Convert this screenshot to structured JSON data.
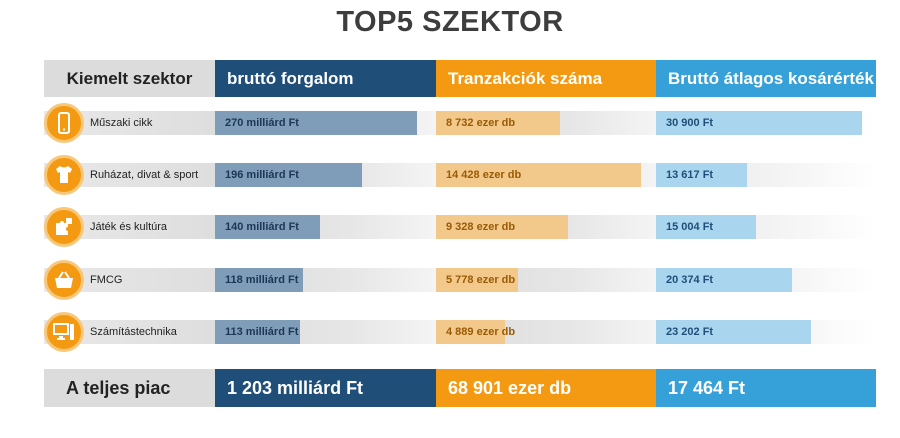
{
  "title": "TOP5 SZEKTOR",
  "headers": {
    "sector": "Kiemelt szektor",
    "revenue": "bruttó forgalom",
    "transactions": "Tranzakciók száma",
    "basket": "Bruttó átlagos kosárérték"
  },
  "colors": {
    "revenue": "#1f4e79",
    "transactions": "#f39a12",
    "basket": "#36a0d8"
  },
  "chart_data": {
    "type": "bar",
    "title": "TOP5 SZEKTOR",
    "categories": [
      "Műszaki cikk",
      "Ruházat, divat & sport",
      "Játék és kultúra",
      "FMCG",
      "Számítástechnika"
    ],
    "icons": [
      "smartphone-icon",
      "tshirt-icon",
      "puzzle-icon",
      "basket-icon",
      "computer-icon"
    ],
    "series": [
      {
        "name": "bruttó forgalom",
        "unit": "milliárd Ft",
        "values": [
          270,
          196,
          140,
          118,
          113
        ],
        "labels": [
          "270 milliárd Ft",
          "196 milliárd Ft",
          "140 milliárd Ft",
          "118 milliárd Ft",
          "113 milliárd Ft"
        ],
        "scale_max": 295
      },
      {
        "name": "Tranzakciók száma",
        "unit": "ezer db",
        "values": [
          8732,
          14428,
          9328,
          5778,
          4889
        ],
        "labels": [
          "8 732 ezer db",
          "14 428 ezer db",
          "9 328 ezer db",
          "5 778 ezer db",
          "4 889 ezer db"
        ],
        "scale_max": 15500
      },
      {
        "name": "Bruttó átlagos kosárérték",
        "unit": "Ft",
        "values": [
          30900,
          13617,
          15004,
          20374,
          23202
        ],
        "labels": [
          "30 900 Ft",
          "13 617 Ft",
          "15 004 Ft",
          "20 374 Ft",
          "23 202 Ft"
        ],
        "scale_max": 33000
      }
    ]
  },
  "totals": {
    "label": "A teljes piac",
    "revenue": "1 203 milliárd Ft",
    "transactions": "68 901 ezer db",
    "basket": "17 464 Ft"
  }
}
